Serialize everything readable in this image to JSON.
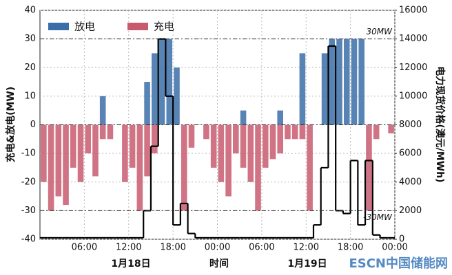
{
  "chart_data": {
    "type": "bar-line",
    "y_label": "充电&放电(MW)",
    "y2_label": "电力现货价格(澳元/MWh)",
    "x_label": "时间",
    "date_labels": [
      "1月18日",
      "1月19日"
    ],
    "watermark": "ESCN中国储能网",
    "x": [
      0,
      1,
      2,
      3,
      4,
      5,
      6,
      7,
      8,
      9,
      10,
      11,
      12,
      13,
      14,
      15,
      16,
      17,
      18,
      19,
      20,
      21,
      22,
      23,
      24,
      25,
      26,
      27,
      28,
      29,
      30,
      31,
      32,
      33,
      34,
      35,
      36,
      37,
      38,
      39,
      40,
      41,
      42,
      43,
      44,
      45,
      46,
      47
    ],
    "xlim": [
      0,
      48
    ],
    "xticks": [
      {
        "value": 6,
        "label": "06:00"
      },
      {
        "value": 12,
        "label": "12:00"
      },
      {
        "value": 18,
        "label": "18:00"
      },
      {
        "value": 24,
        "label": "00:00"
      },
      {
        "value": 30,
        "label": "06:00"
      },
      {
        "value": 36,
        "label": "12:00"
      },
      {
        "value": 42,
        "label": "18:00"
      },
      {
        "value": 48,
        "label": "00:00"
      }
    ],
    "ylim": [
      -40,
      40
    ],
    "yticks": [
      -40,
      -30,
      -20,
      -10,
      0,
      10,
      20,
      30,
      40
    ],
    "y2lim": [
      0,
      16000
    ],
    "y2ticks": [
      0,
      2000,
      4000,
      6000,
      8000,
      10000,
      12000,
      14000,
      16000
    ],
    "grid": true,
    "legend": "upper left",
    "reference_lines": [
      {
        "value": 30,
        "label": "30MW"
      },
      {
        "value": -30,
        "label": "-30MW"
      }
    ],
    "series": [
      {
        "name": "放电",
        "color": "#3a6ea8",
        "kind": "bar",
        "values": [
          0,
          0,
          0,
          0,
          0,
          0,
          0,
          0,
          10,
          0,
          0,
          0,
          0,
          0,
          15,
          25,
          30,
          30,
          20,
          0,
          0,
          0,
          0,
          0,
          0,
          0,
          0,
          5,
          0,
          0,
          0,
          0,
          5,
          0,
          0,
          25,
          0,
          0,
          25,
          30,
          30,
          30,
          30,
          30,
          0,
          0,
          0,
          0
        ]
      },
      {
        "name": "充电",
        "color": "#c85a6e",
        "kind": "bar",
        "values": [
          -20,
          -30,
          -25,
          -28,
          -15,
          -20,
          -10,
          -18,
          -5,
          -5,
          0,
          -20,
          -15,
          -30,
          -18,
          -10,
          0,
          0,
          0,
          -30,
          -8,
          0,
          -5,
          -15,
          -20,
          -25,
          -10,
          -15,
          -20,
          -30,
          -15,
          -12,
          -10,
          -5,
          -5,
          -5,
          -30,
          0,
          0,
          0,
          0,
          0,
          0,
          0,
          -30,
          -5,
          0,
          -3
        ]
      },
      {
        "name": "电力现货价格",
        "color": "#000000",
        "kind": "step",
        "axis": "y2",
        "values": [
          100,
          100,
          100,
          100,
          100,
          100,
          100,
          100,
          100,
          100,
          100,
          100,
          100,
          100,
          2000,
          6500,
          14000,
          10000,
          1000,
          2500,
          400,
          100,
          100,
          100,
          100,
          100,
          100,
          100,
          100,
          100,
          100,
          100,
          100,
          100,
          100,
          100,
          100,
          1000,
          5000,
          13500,
          2000,
          1800,
          5500,
          1000,
          5500,
          300,
          100,
          100
        ]
      }
    ]
  }
}
